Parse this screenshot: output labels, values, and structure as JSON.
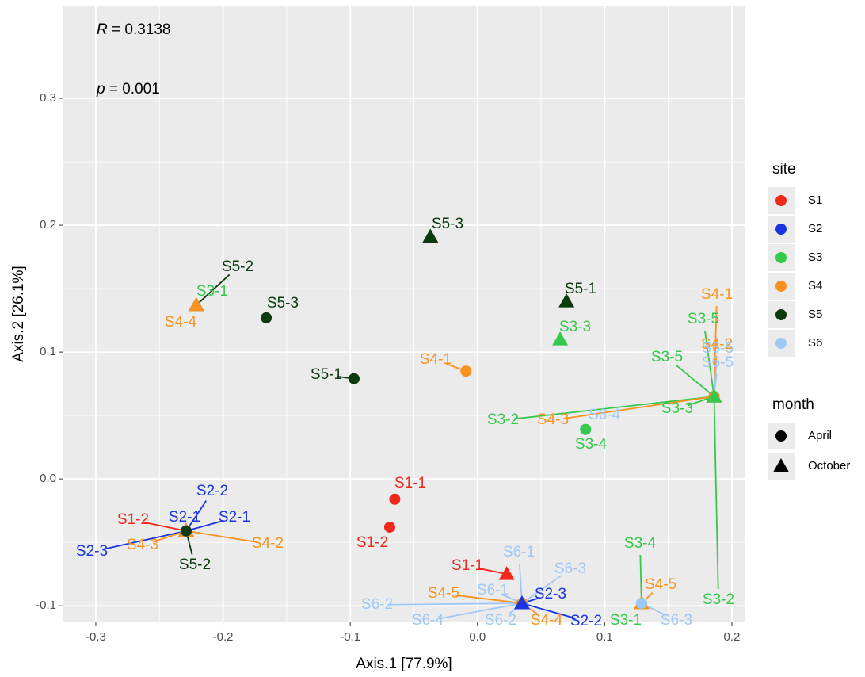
{
  "chart_data": {
    "type": "scatter",
    "xlabel": "Axis.1   [77.9%]",
    "ylabel": "Axis.2   [26.1%]",
    "xlim": [
      -0.3255,
      0.21
    ],
    "ylim": [
      -0.113,
      0.3725
    ],
    "xticks": [
      -0.3,
      -0.2,
      -0.1,
      {
        "value": 0,
        "label": "0.0"
      },
      0.1,
      0.2
    ],
    "yticks": [
      -0.1,
      {
        "value": 0,
        "label": "0.0"
      },
      0.1,
      0.2,
      0.3
    ],
    "grid": true,
    "annotations": [
      {
        "var": "R",
        "text": " = 0.3138"
      },
      {
        "var": "p",
        "text": " = 0.001"
      }
    ],
    "site_legend": {
      "title": "site",
      "items": [
        {
          "name": "S1",
          "color": "#f2281c"
        },
        {
          "name": "S2",
          "color": "#1a35e0"
        },
        {
          "name": "S3",
          "color": "#35c84a"
        },
        {
          "name": "S4",
          "color": "#f7931e"
        },
        {
          "name": "S5",
          "color": "#0b3a0d"
        },
        {
          "name": "S6",
          "color": "#9ec8f5"
        }
      ]
    },
    "month_legend": {
      "title": "month",
      "items": [
        {
          "name": "April",
          "shape": "circle"
        },
        {
          "name": "October",
          "shape": "triangle"
        }
      ]
    },
    "points": [
      {
        "label": "S1-1",
        "site": "S1",
        "month": "April",
        "x": -0.065,
        "y": -0.016
      },
      {
        "label": "S1-2",
        "site": "S1",
        "month": "April",
        "x": -0.069,
        "y": -0.038
      },
      {
        "label": "S5-1",
        "site": "S5",
        "month": "April",
        "x": -0.097,
        "y": 0.079
      },
      {
        "label": "S5-3",
        "site": "S5",
        "month": "April",
        "x": -0.166,
        "y": 0.127
      },
      {
        "label": "S4-1",
        "site": "S4",
        "month": "April",
        "x": -0.009,
        "y": 0.085
      },
      {
        "label": "S6-4",
        "site": "S6",
        "month": "April",
        "x": 0.085,
        "y": 0.039
      },
      {
        "label": "S3-4",
        "site": "S3",
        "month": "April",
        "x": 0.085,
        "y": 0.039
      },
      {
        "label": "S1-2",
        "site": "S1",
        "month": "October",
        "x": -0.229,
        "y": -0.041
      },
      {
        "label": "S2-2",
        "site": "S2",
        "month": "April",
        "x": -0.229,
        "y": -0.041
      },
      {
        "label": "S2-1",
        "site": "S2",
        "month": "April",
        "x": -0.229,
        "y": -0.041
      },
      {
        "label": "S2-1",
        "site": "S2",
        "month": "October",
        "x": -0.229,
        "y": -0.041
      },
      {
        "label": "S2-3",
        "site": "S2",
        "month": "October",
        "x": -0.229,
        "y": -0.041
      },
      {
        "label": "S4-3",
        "site": "S4",
        "month": "October",
        "x": -0.229,
        "y": -0.041
      },
      {
        "label": "S4-2",
        "site": "S4",
        "month": "April",
        "x": -0.229,
        "y": -0.041
      },
      {
        "label": "S5-2",
        "site": "S5",
        "month": "April",
        "x": -0.229,
        "y": -0.041
      },
      {
        "label": "S5-3",
        "site": "S5",
        "month": "October",
        "x": -0.037,
        "y": 0.191
      },
      {
        "label": "S5-2",
        "site": "S5",
        "month": "October",
        "x": -0.221,
        "y": 0.137
      },
      {
        "label": "S3-1",
        "site": "S3",
        "month": "October",
        "x": -0.221,
        "y": 0.137
      },
      {
        "label": "S4-4",
        "site": "S4",
        "month": "October",
        "x": -0.221,
        "y": 0.137
      },
      {
        "label": "S5-1",
        "site": "S5",
        "month": "October",
        "x": 0.07,
        "y": 0.14
      },
      {
        "label": "S3-3",
        "site": "S3",
        "month": "October",
        "x": 0.065,
        "y": 0.11
      },
      {
        "label": "S1-1",
        "site": "S1",
        "month": "October",
        "x": 0.023,
        "y": -0.075
      },
      {
        "label": "S4-1",
        "site": "S4",
        "month": "October",
        "x": 0.186,
        "y": 0.065
      },
      {
        "label": "S3-5",
        "site": "S3",
        "month": "October",
        "x": 0.186,
        "y": 0.065
      },
      {
        "label": "S4-2",
        "site": "S4",
        "month": "October",
        "x": 0.186,
        "y": 0.065
      },
      {
        "label": "S3-5",
        "site": "S3",
        "month": "April",
        "x": 0.186,
        "y": 0.065
      },
      {
        "label": "S6-5",
        "site": "S6",
        "month": "October",
        "x": 0.186,
        "y": 0.065
      },
      {
        "label": "S6-5",
        "site": "S6",
        "month": "April",
        "x": 0.186,
        "y": 0.065
      },
      {
        "label": "S3-3",
        "site": "S3",
        "month": "April",
        "x": 0.186,
        "y": 0.065
      },
      {
        "label": "S3-2",
        "site": "S3",
        "month": "April",
        "x": 0.186,
        "y": 0.065
      },
      {
        "label": "S4-3",
        "site": "S4",
        "month": "April",
        "x": 0.186,
        "y": 0.065
      },
      {
        "label": "S3-2",
        "site": "S3",
        "month": "October",
        "x": 0.186,
        "y": 0.065
      },
      {
        "label": "S6-1",
        "site": "S6",
        "month": "October",
        "x": 0.035,
        "y": -0.098
      },
      {
        "label": "S6-3",
        "site": "S6",
        "month": "October",
        "x": 0.035,
        "y": -0.098
      },
      {
        "label": "S6-1",
        "site": "S6",
        "month": "April",
        "x": 0.035,
        "y": -0.098
      },
      {
        "label": "S2-3",
        "site": "S2",
        "month": "April",
        "x": 0.035,
        "y": -0.098
      },
      {
        "label": "S6-2",
        "site": "S6",
        "month": "April",
        "x": 0.035,
        "y": -0.098
      },
      {
        "label": "S4-5",
        "site": "S4",
        "month": "April",
        "x": 0.035,
        "y": -0.098
      },
      {
        "label": "S6-4",
        "site": "S6",
        "month": "October",
        "x": 0.035,
        "y": -0.098
      },
      {
        "label": "S6-2",
        "site": "S6",
        "month": "October",
        "x": 0.035,
        "y": -0.098
      },
      {
        "label": "S4-4",
        "site": "S4",
        "month": "April",
        "x": 0.035,
        "y": -0.098
      },
      {
        "label": "S2-2",
        "site": "S2",
        "month": "October",
        "x": 0.035,
        "y": -0.098
      },
      {
        "label": "S3-4",
        "site": "S3",
        "month": "October",
        "x": 0.129,
        "y": -0.098
      },
      {
        "label": "S4-5",
        "site": "S4",
        "month": "October",
        "x": 0.129,
        "y": -0.098
      },
      {
        "label": "S3-1",
        "site": "S3",
        "month": "April",
        "x": 0.129,
        "y": -0.098
      },
      {
        "label": "S6-3",
        "site": "S6",
        "month": "April",
        "x": 0.129,
        "y": -0.098
      }
    ]
  }
}
